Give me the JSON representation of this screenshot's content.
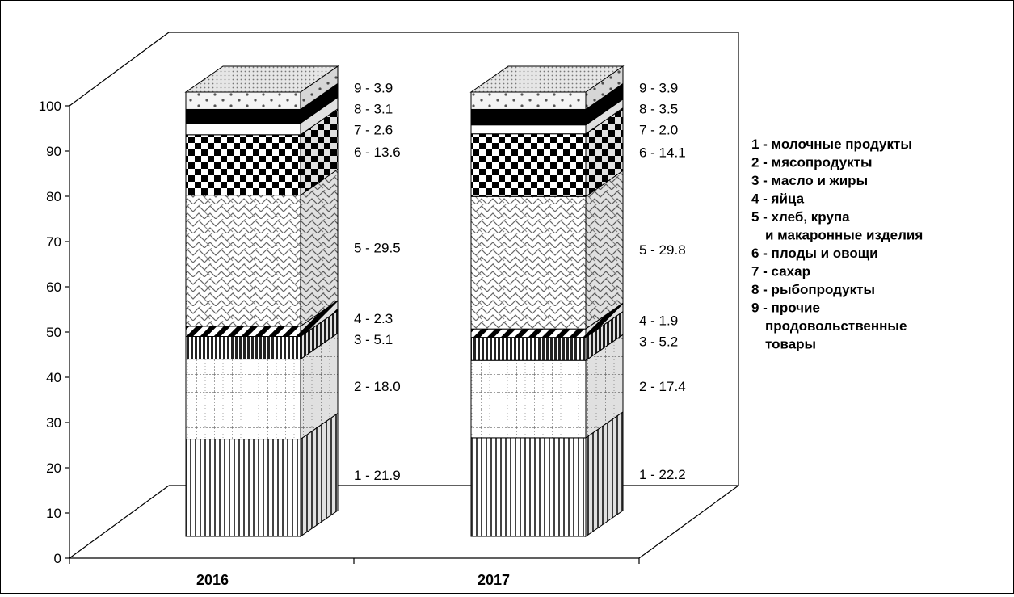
{
  "chart_data": {
    "type": "bar",
    "stacked": true,
    "three_d": true,
    "categories": [
      "2016",
      "2017"
    ],
    "series": [
      {
        "code": "1",
        "values": [
          21.9,
          22.2
        ],
        "pattern": "vertical-lines"
      },
      {
        "code": "2",
        "values": [
          18.0,
          17.4
        ],
        "pattern": "dotted-grid"
      },
      {
        "code": "3",
        "values": [
          5.1,
          5.2
        ],
        "pattern": "dense-vertical"
      },
      {
        "code": "4",
        "values": [
          2.3,
          1.9
        ],
        "pattern": "diagonal-stripes"
      },
      {
        "code": "5",
        "values": [
          29.5,
          29.8
        ],
        "pattern": "brick-zigzag"
      },
      {
        "code": "6",
        "values": [
          13.6,
          14.1
        ],
        "pattern": "checkerboard"
      },
      {
        "code": "7",
        "values": [
          2.6,
          2.0
        ],
        "pattern": "white"
      },
      {
        "code": "8",
        "values": [
          3.1,
          3.5
        ],
        "pattern": "solid-black"
      },
      {
        "code": "9",
        "values": [
          3.9,
          3.9
        ],
        "pattern": "sparse-dots"
      }
    ],
    "segment_labels": [
      [
        "1 - 21.9",
        "2 - 18.0",
        "3 - 5.1",
        "4 - 2.3",
        "5 - 29.5",
        "6 - 13.6",
        "7 - 2.6",
        "8 - 3.1",
        "9 - 3.9"
      ],
      [
        "1 - 22.2",
        "2 - 17.4",
        "3 - 5.2",
        "4 - 1.9",
        "5 - 29.8",
        "6 - 14.1",
        "7 - 2.0",
        "8 - 3.5",
        "9 - 3.9"
      ]
    ],
    "yticks": [
      "0",
      "10",
      "20",
      "30",
      "40",
      "50",
      "60",
      "70",
      "80",
      "90",
      "100"
    ],
    "ylim": [
      0,
      100
    ],
    "grid": false,
    "legend_position": "right",
    "legend": [
      "1 - молочные продукты",
      "2 - мясопродукты",
      "3 - масло и жиры",
      "4 - яйца",
      "5 - хлеб, крупа",
      "и макаронные изделия",
      "6 - плоды и овощи",
      "7 - сахар",
      "8 - рыбопродукты",
      "9 - прочие",
      "продовольственные",
      "товары"
    ]
  }
}
